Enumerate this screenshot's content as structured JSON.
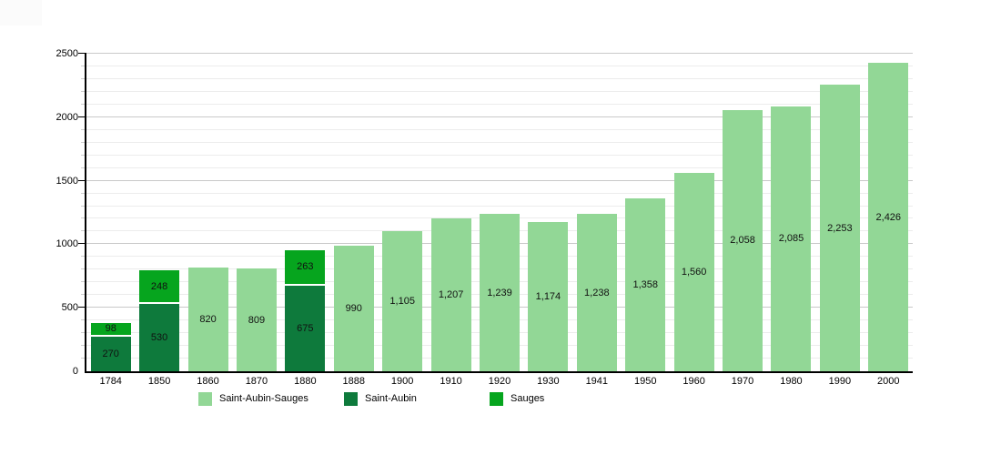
{
  "chart_data": {
    "type": "bar",
    "stacked": true,
    "title": "",
    "xlabel": "",
    "ylabel": "",
    "categories": [
      "1784",
      "1850",
      "1860",
      "1870",
      "1880",
      "1888",
      "1900",
      "1910",
      "1920",
      "1930",
      "1941",
      "1950",
      "1960",
      "1970",
      "1980",
      "1990",
      "2000"
    ],
    "series": [
      {
        "name": "Saint-Aubin-Sauges",
        "color": "#92d796",
        "values": [
          null,
          null,
          820,
          809,
          null,
          990,
          1105,
          1207,
          1239,
          1174,
          1238,
          1358,
          1560,
          2058,
          2085,
          2253,
          2426
        ]
      },
      {
        "name": "Saint-Aubin",
        "color": "#0e7a3c",
        "values": [
          270,
          530,
          null,
          null,
          675,
          null,
          null,
          null,
          null,
          null,
          null,
          null,
          null,
          null,
          null,
          null,
          null
        ]
      },
      {
        "name": "Sauges",
        "color": "#06a51e",
        "values": [
          98,
          248,
          null,
          null,
          263,
          null,
          null,
          null,
          null,
          null,
          null,
          null,
          null,
          null,
          null,
          null,
          null
        ]
      }
    ],
    "ylim": [
      0,
      2500
    ],
    "y_major_step": 500,
    "y_minor_step": 100,
    "y_tick_labels": [
      "0",
      "500",
      "1000",
      "1500",
      "2000",
      "2500"
    ],
    "grid": true,
    "value_labels": "inside-center",
    "value_label_format": "thousands-comma",
    "legend_position": "bottom",
    "axis_color": "#000000",
    "grid_minor_color": "#ececec",
    "grid_major_color": "#c9c9c9",
    "separator_color": "#ffffff"
  }
}
